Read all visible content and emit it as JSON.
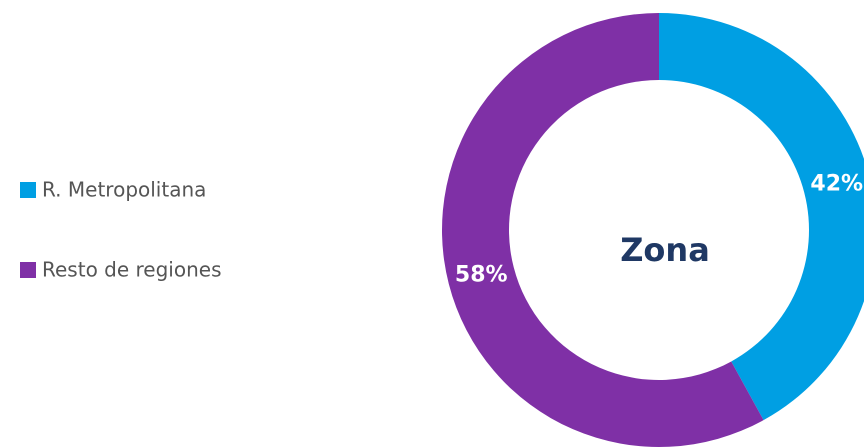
{
  "chart_data": {
    "type": "donut",
    "title": "Zona",
    "categories": [
      "R. Metropolitana",
      "Resto de regiones"
    ],
    "values": [
      42,
      58
    ],
    "value_labels": [
      "42%",
      "58%"
    ],
    "colors": [
      "#009fe3",
      "#7f30a6"
    ],
    "legend": "left"
  }
}
